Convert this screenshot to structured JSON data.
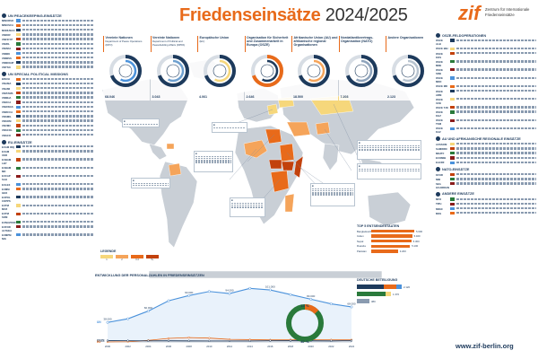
{
  "header": {
    "title_main": "Friedenseinsätze",
    "title_years": "2024/2025",
    "logo_mark": "zif",
    "logo_text": "Zentrum für Internationale Friedenseinsätze"
  },
  "footer": {
    "url": "www.zif-berlin.org"
  },
  "colors": {
    "navy": "#1d3a5c",
    "orange": "#e86a1a",
    "light_orange": "#f5a45a",
    "yellow": "#f6d77b",
    "land": "#c9cfd6",
    "ocean": "#ffffff"
  },
  "left_sections": [
    {
      "heading": "UN PEACEKEEPING-EINSÄTZE",
      "rows": [
        "MINURSO",
        "MINUSCA",
        "MONUSCO",
        "UNDOF",
        "UNFICYP",
        "UNIFIL",
        "UNISFA",
        "UNMIK",
        "UNMISS",
        "UNMOGIP",
        "UNTSO"
      ]
    },
    {
      "heading": "UN SPECIAL POLITICAL MISSIONS",
      "rows": [
        "BINUH",
        "UNAMA",
        "UNAMI",
        "UNITAMS",
        "UNMHA",
        "UNOCA",
        "UNOWAS",
        "UNRCCA",
        "UNSMIL",
        "UNSOM",
        "UNVMC",
        "UNSCOL",
        "UNSCO"
      ]
    },
    {
      "heading": "EU-EINSÄTZE",
      "rows": [
        "EUAM IRQ",
        "EUAM UKR",
        "EUBAM LBY",
        "EUBAM MD",
        "EUCAP SAH",
        "EULEX",
        "EUMM GEO",
        "EUPOL COPPS",
        "EUTM MOZ",
        "EUTM SOM",
        "EUNAVFOR",
        "EUFOR ALTHEA",
        "EUMPM NIG"
      ]
    }
  ],
  "right_sections": [
    {
      "heading": "OSZE-FELDOPERATIONEN",
      "rows": [
        "OSCE ALB",
        "OSCE BIH",
        "OSCE KOS",
        "OSCE MNE",
        "OSCE SRB",
        "OSCE MKD",
        "OSCE MD",
        "OSCE ARM",
        "OSCE UZB",
        "OSCE TJK",
        "OSCE KGZ",
        "OSCE TKM",
        "OSCE KAZ"
      ]
    },
    {
      "heading": "AU UND AFRIKANISCHE REGIONALE EINSÄTZE",
      "rows": [
        "AUSSOM",
        "SAMIDRC",
        "MNJTF",
        "ECOMIB",
        "EACRF"
      ]
    },
    {
      "heading": "NATO-EINSÄTZE",
      "rows": [
        "KFOR",
        "NMI",
        "SEA GUARDIAN"
      ]
    },
    {
      "heading": "ANDERE EINSÄTZE",
      "rows": [
        "MFO",
        "TIPH",
        "NNSC",
        "MSS"
      ]
    }
  ],
  "orgs": [
    {
      "title": "Vereinte Nationen",
      "sub": "Department of Peace Operations (DPO)",
      "total": "68.046"
    },
    {
      "title": "Vereinte Nationen",
      "sub": "Department of Political and Peacebuilding Affairs (DPPA)",
      "total": "3.043"
    },
    {
      "title": "Europäische Union",
      "sub": "(EU)",
      "total": "4.061"
    },
    {
      "title": "Organisation für Sicherheit und Zusammenarbeit in Europa (OSZE)",
      "sub": "",
      "total": "2.646"
    },
    {
      "title": "Afrikanische Union (AU) und afrikanische regional Organisationen",
      "sub": "",
      "total": "18.500"
    },
    {
      "title": "Nordatlantikvertrags-Organisation (NATO)",
      "sub": "",
      "total": "7.203"
    },
    {
      "title": "Andere Organisationen",
      "sub": "",
      "total": "2.123"
    }
  ],
  "legend": {
    "title": "LEGENDE",
    "items": [
      {
        "label": "1",
        "color": "#f6d77b"
      },
      {
        "label": "2",
        "color": "#f5a45a"
      },
      {
        "label": "3-4",
        "color": "#e86a1a"
      },
      {
        "label": "5+",
        "color": "#c2410c"
      }
    ]
  },
  "personnel_chart_title": "ENTWICKLUNG DER PERSONALZAHLEN IN FRIEDENSEINSÄTZEN",
  "chart_data": {
    "type": "line",
    "title": "ENTWICKLUNG DER PERSONALZAHLEN IN FRIEDENSEINSÄTZEN",
    "x": [
      "2000",
      "2002",
      "2004",
      "2006",
      "2008",
      "2010",
      "2012",
      "2014",
      "2016",
      "2018",
      "2020",
      "2022",
      "2024"
    ],
    "series": [
      {
        "name": "UN",
        "values": [
          38000,
          45000,
          60000,
          80000,
          90000,
          98000,
          94000,
          104000,
          101000,
          92000,
          83000,
          74000,
          68000
        ]
      },
      {
        "name": "EU",
        "values": [
          0,
          500,
          3000,
          7000,
          8500,
          7500,
          5000,
          4500,
          4000,
          4200,
          4300,
          4100,
          4000
        ]
      },
      {
        "name": "OSZE",
        "values": [
          2500,
          2400,
          2200,
          2300,
          2100,
          2000,
          1900,
          2000,
          2400,
          2500,
          2300,
          2100,
          2600
        ]
      }
    ],
    "ylim": [
      0,
      115000
    ]
  },
  "gender": {
    "label_a": "13 %",
    "label_b": "87 %",
    "share_a": 0.13
  },
  "contrib": {
    "title": "TOP 5 ENTSENDESTAATEN",
    "rows": [
      {
        "label": "Bangladesch",
        "value": "5.600",
        "share": 1.0
      },
      {
        "label": "Indien",
        "value": "5.400",
        "share": 0.95
      },
      {
        "label": "Nepal",
        "value": "5.300",
        "share": 0.93
      },
      {
        "label": "Ruanda",
        "value": "5.100",
        "share": 0.9
      },
      {
        "label": "Pakistan",
        "value": "3.200",
        "share": 0.62
      }
    ]
  },
  "german": {
    "title": "DEUTSCHE BETEILIGUNG",
    "rows": [
      {
        "value": "2.120"
      },
      {
        "value": "1.370"
      },
      {
        "value": "380"
      }
    ]
  }
}
